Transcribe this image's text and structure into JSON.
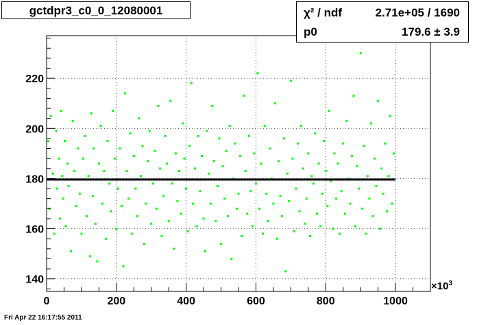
{
  "title": "gctdpr3_c0_0_12080001",
  "stats": {
    "chi2_label": "χ² / ndf",
    "chi2_value": "2.71e+05 / 1690",
    "p0_label": "p0",
    "p0_value": "179.6 ±  3.9"
  },
  "footer": "Fri Apr 22 16:17:55 2011",
  "x_multiplier_base": "×10",
  "x_multiplier_exp": "3",
  "colors": {
    "points": "#00ff00",
    "fit": "#000000",
    "grid": "#000000"
  },
  "chart_data": {
    "type": "scatter",
    "title": "gctdpr3_c0_0_12080001",
    "xlabel": "",
    "ylabel": "",
    "xlim": [
      0,
      1100
    ],
    "ylim": [
      135,
      237
    ],
    "xticks": [
      0,
      200,
      400,
      600,
      800,
      1000
    ],
    "yticks": [
      140,
      160,
      180,
      200,
      220
    ],
    "grid": true,
    "fit": {
      "type": "constant",
      "p0": 179.6,
      "p0_err": 3.9,
      "x_range": [
        0,
        1000
      ]
    },
    "series": [
      {
        "x": [
          5,
          8,
          12,
          18,
          22,
          28,
          30,
          35,
          38,
          42,
          45,
          48,
          52,
          55,
          60,
          63,
          70,
          75,
          80,
          85,
          90,
          95,
          100,
          105,
          110,
          115,
          120,
          125,
          128,
          132,
          135,
          140,
          145,
          150,
          155,
          160,
          165,
          170,
          175,
          180,
          185,
          190,
          195,
          200,
          205,
          210,
          215,
          220,
          225,
          230,
          235,
          240,
          245,
          250,
          255,
          260,
          265,
          270,
          275,
          280,
          285,
          290,
          295,
          300,
          305,
          310,
          315,
          320,
          325,
          330,
          335,
          340,
          345,
          350,
          355,
          360,
          365,
          370,
          375,
          380,
          385,
          390,
          395,
          400,
          405,
          410,
          415,
          420,
          425,
          430,
          435,
          440,
          445,
          450,
          455,
          460,
          465,
          470,
          475,
          480,
          485,
          490,
          495,
          500,
          505,
          510,
          515,
          520,
          525,
          530,
          535,
          540,
          545,
          550,
          555,
          560,
          565,
          570,
          575,
          580,
          585,
          590,
          595,
          600,
          605,
          610,
          615,
          620,
          625,
          630,
          635,
          640,
          645,
          650,
          655,
          660,
          665,
          670,
          675,
          680,
          685,
          690,
          695,
          700,
          705,
          710,
          715,
          720,
          725,
          730,
          735,
          740,
          745,
          750,
          755,
          760,
          765,
          770,
          775,
          780,
          785,
          790,
          795,
          800,
          805,
          810,
          815,
          820,
          825,
          830,
          835,
          840,
          845,
          850,
          855,
          860,
          865,
          870,
          875,
          880,
          885,
          890,
          895,
          900,
          905,
          910,
          915,
          920,
          925,
          930,
          935,
          940,
          945,
          950,
          955,
          960,
          965,
          970,
          975,
          980,
          985,
          990,
          995
        ],
        "y": [
          195,
          168,
          205,
          182,
          158,
          199,
          176,
          188,
          164,
          207,
          181,
          172,
          195,
          161,
          186,
          177,
          151,
          203,
          183,
          169,
          192,
          174,
          158,
          188,
          197,
          165,
          181,
          149,
          206,
          173,
          192,
          162,
          147,
          186,
          201,
          170,
          183,
          156,
          195,
          178,
          167,
          207,
          188,
          160,
          176,
          192,
          169,
          145,
          214,
          183,
          172,
          198,
          158,
          189,
          176,
          165,
          204,
          181,
          193,
          154,
          170,
          187,
          199,
          162,
          178,
          191,
          168,
          209,
          184,
          157,
          173,
          197,
          186,
          163,
          211,
          178,
          152,
          190,
          171,
          183,
          166,
          202,
          188,
          176,
          159,
          193,
          218,
          170,
          184,
          161,
          197,
          175,
          189,
          164,
          151,
          199,
          182,
          170,
          209,
          187,
          163,
          177,
          196,
          154,
          185,
          172,
          191,
          165,
          201,
          148,
          180,
          194,
          168,
          174,
          189,
          157,
          213,
          183,
          166,
          197,
          175,
          161,
          190,
          178,
          222,
          168,
          186,
          158,
          201,
          174,
          163,
          192,
          180,
          170,
          210,
          156,
          187,
          173,
          165,
          196,
          143,
          182,
          171,
          219,
          188,
          159,
          176,
          194,
          167,
          201,
          184,
          162,
          172,
          190,
          157,
          181,
          178,
          198,
          166,
          186,
          161,
          174,
          195,
          183,
          169,
          207,
          179,
          160,
          190,
          172,
          186,
          158,
          175,
          194,
          166,
          203,
          180,
          170,
          189,
          213,
          161,
          185,
          176,
          230,
          168,
          193,
          158,
          181,
          172,
          202,
          165,
          188,
          177,
          211,
          160,
          184,
          174,
          194,
          167,
          181,
          205,
          170,
          190
        ]
      }
    ]
  }
}
